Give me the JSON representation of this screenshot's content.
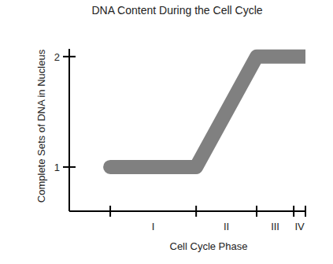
{
  "chart_data": {
    "type": "line",
    "title": "DNA Content During the Cell Cycle",
    "x_label": "Cell Cycle Phase",
    "y_label": "Complete Sets of DNA in Nucleus",
    "categories": [
      "I",
      "II",
      "III",
      "IV"
    ],
    "phase_durations": [
      44,
      31,
      19,
      6
    ],
    "x": [
      0,
      44,
      75,
      100
    ],
    "values": [
      1,
      1,
      2,
      2
    ],
    "xlim": [
      -21,
      100
    ],
    "ylim": [
      0.6,
      2.07
    ],
    "yticks": [
      1,
      2
    ],
    "color": "#808080"
  }
}
